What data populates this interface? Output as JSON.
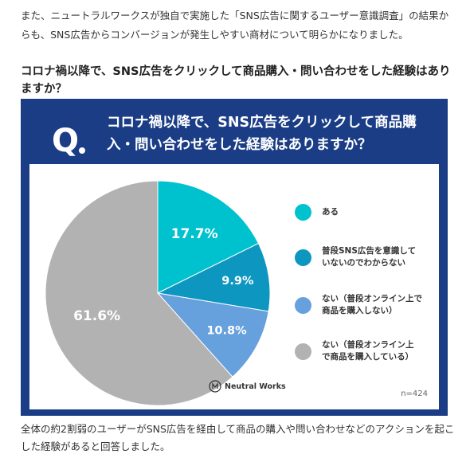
{
  "article": {
    "intro_text": "また、ニュートラルワークスが独自で実施した「SNS広告に関するユーザー意識調査」の結果からも、SNS広告からコンバージョンが発生しやすい商材について明らかになりました。",
    "section_heading": "コロナ禍以降で、SNS広告をクリックして商品購入・問い合わせをした経験はありますか？",
    "outro_text": "全体の約2割弱のユーザーがSNS広告を経由して商品の購入や問い合わせなどのアクションを起こした経験があると回答しました。"
  },
  "card": {
    "background": "#1a3d86",
    "q_letter": "Q",
    "question": "コロナ禍以降で、SNS広告をクリックして商品購入・問い合わせをした経験はありますか？",
    "brand": "Neutral Works",
    "sample_size": "n=424"
  },
  "chart_data": {
    "type": "pie",
    "title": "コロナ禍以降で、SNS広告をクリックして商品購入・問い合わせをした経験はありますか？",
    "slices": [
      {
        "label": "ある",
        "value": 17.7,
        "value_label": "17.7%",
        "color": "#00c2cf"
      },
      {
        "label": "普段SNS広告を意識して\nいないのでわからない",
        "value": 9.9,
        "value_label": "9.9%",
        "color": "#0d96bf"
      },
      {
        "label": "ない（普段オンライン上で\n商品を購入しない）",
        "value": 10.8,
        "value_label": "10.8%",
        "color": "#66a0dd"
      },
      {
        "label": "ない（普段オンライン上\nで商品を購入している）",
        "value": 61.6,
        "value_label": "61.6%",
        "color": "#b2b2b2"
      }
    ],
    "start_angle": "12 o'clock",
    "direction": "clockwise",
    "legend_placement": "right"
  }
}
